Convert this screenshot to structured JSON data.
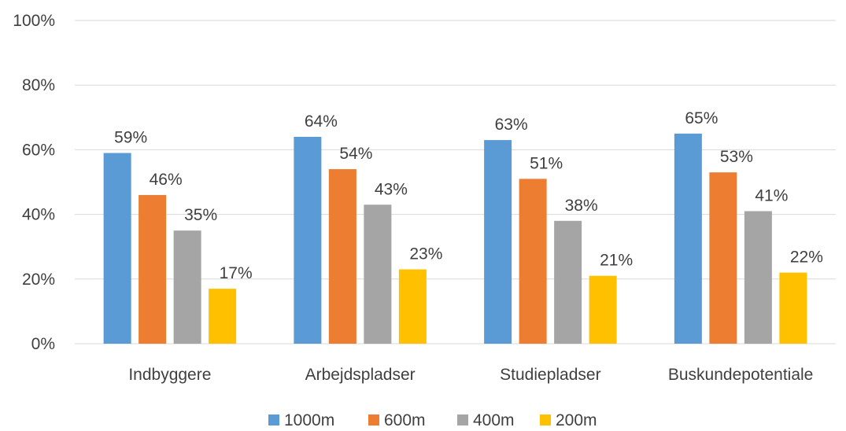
{
  "chart_data": {
    "type": "bar",
    "categories": [
      "Indbyggere",
      "Arbejdspladser",
      "Studiepladser",
      "Buskundepotentiale"
    ],
    "series": [
      {
        "name": "1000m",
        "values": [
          59,
          64,
          63,
          65
        ],
        "color": "#5b9bd5"
      },
      {
        "name": "600m",
        "values": [
          46,
          54,
          51,
          53
        ],
        "color": "#ed7d31"
      },
      {
        "name": "400m",
        "values": [
          35,
          43,
          38,
          41
        ],
        "color": "#a5a5a5"
      },
      {
        "name": "200m",
        "values": [
          17,
          23,
          21,
          22
        ],
        "color": "#ffc000"
      }
    ],
    "ylim": [
      0,
      100
    ],
    "yticks": [
      0,
      20,
      40,
      60,
      80,
      100
    ],
    "value_suffix": "%",
    "grid": true,
    "legend_position": "bottom"
  }
}
